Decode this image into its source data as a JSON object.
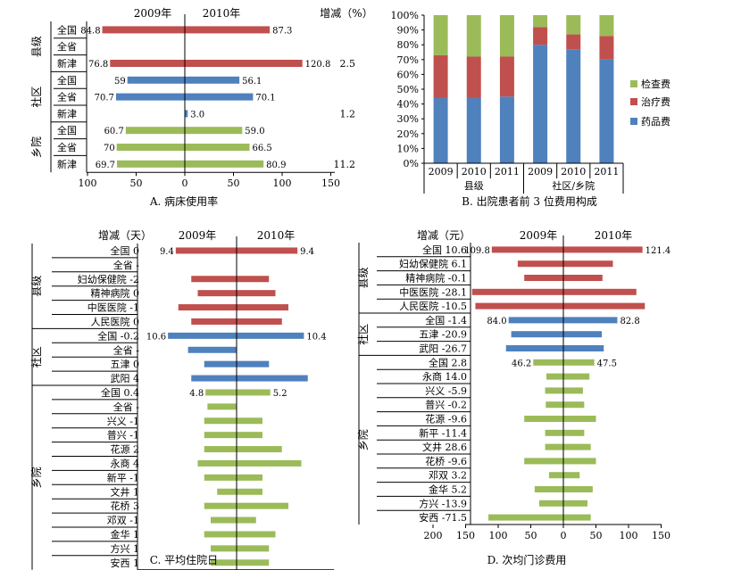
{
  "colors": {
    "red": "#C0504D",
    "blue": "#4F81BD",
    "green": "#9BBB59",
    "axis_red": "#E0201A"
  },
  "panel_a": {
    "caption": "A. 病床使用率",
    "chart_data": {
      "type": "bar",
      "orientation": "horizontal-butterfly",
      "header_left": "2009年",
      "header_right": "2010年",
      "header_change": "增减（%）",
      "xticks": [
        "100",
        "50",
        "0",
        "50",
        "100",
        "150"
      ],
      "xtick_values": [
        -100,
        -50,
        0,
        50,
        100,
        150
      ],
      "groups": [
        {
          "name": "县级",
          "color": "red",
          "rows": [
            {
              "label": "全国",
              "v2009": 84.8,
              "v2010": 87.3,
              "t2009": "84.8",
              "t2010": "87.3",
              "change": ""
            },
            {
              "label": "全省",
              "v2009": null,
              "v2010": null,
              "t2009": "",
              "t2010": "",
              "change": ""
            },
            {
              "label": "新津",
              "v2009": 76.8,
              "v2010": 120.8,
              "t2009": "76.8",
              "t2010": "120.8",
              "change": "2.5"
            }
          ]
        },
        {
          "name": "社区",
          "color": "blue",
          "rows": [
            {
              "label": "全国",
              "v2009": 59,
              "v2010": 56.1,
              "t2009": "59",
              "t2010": "56.1",
              "change": ""
            },
            {
              "label": "全省",
              "v2009": 70.7,
              "v2010": 70.1,
              "t2009": "70.7",
              "t2010": "70.1",
              "change": ""
            },
            {
              "label": "新津",
              "v2009": null,
              "v2010": 3.0,
              "t2009": "",
              "t2010": "3.0",
              "change": "1.2"
            }
          ]
        },
        {
          "name": "乡院",
          "color": "green",
          "rows": [
            {
              "label": "全国",
              "v2009": 60.7,
              "v2010": 59.0,
              "t2009": "60.7",
              "t2010": "59.0",
              "change": ""
            },
            {
              "label": "全省",
              "v2009": 70,
              "v2010": 66.5,
              "t2009": "70",
              "t2010": "66.5",
              "change": ""
            },
            {
              "label": "新津",
              "v2009": 69.7,
              "v2010": 80.9,
              "t2009": "69.7",
              "t2010": "80.9",
              "change": "11.2"
            }
          ]
        }
      ]
    }
  },
  "panel_b": {
    "caption": "B. 出院患者前 3 位费用构成",
    "chart_data": {
      "type": "bar",
      "stacked": "percent",
      "ylim": [
        0,
        100
      ],
      "yticks": [
        "0%",
        "10%",
        "20%",
        "30%",
        "40%",
        "50%",
        "60%",
        "70%",
        "80%",
        "90%",
        "100%"
      ],
      "categories": [
        "2009",
        "2010",
        "2011",
        "2009",
        "2010",
        "2011"
      ],
      "category_groups": [
        {
          "name": "县级",
          "span": 3
        },
        {
          "name": "社区/乡院",
          "span": 3
        }
      ],
      "legend_position": "right",
      "series": [
        {
          "name": "药品费",
          "color": "blue",
          "values": [
            44,
            44,
            45,
            80,
            77,
            70
          ]
        },
        {
          "name": "治疗费",
          "color": "red",
          "values": [
            29,
            28,
            27,
            12,
            10,
            16
          ]
        },
        {
          "name": "检查费",
          "color": "green",
          "values": [
            27,
            28,
            28,
            8,
            13,
            14
          ]
        }
      ]
    }
  },
  "panel_c": {
    "caption": "C. 平均住院日",
    "chart_data": {
      "type": "bar",
      "orientation": "horizontal-butterfly",
      "header_change": "增减（天）",
      "header_left": "2009年",
      "header_right": "2010年",
      "xticks": [
        "15",
        "10",
        "5",
        "0",
        "5",
        "10",
        "15"
      ],
      "xtick_values": [
        -15,
        -10,
        -5,
        0,
        5,
        10,
        15
      ],
      "groups": [
        {
          "name": "县级",
          "color": "red",
          "rows": [
            {
              "label": "全国",
              "change": "0",
              "v2009": 9.4,
              "v2010": 9.4,
              "t2009": "9.4",
              "t2010": "9.4"
            },
            {
              "label": "全省",
              "change": "-",
              "v2009": null,
              "v2010": null,
              "t2009": "",
              "t2010": ""
            },
            {
              "label": "妇幼保健院",
              "change": "-2",
              "v2009": 7.0,
              "v2010": 5.0,
              "t2009": "",
              "t2010": ""
            },
            {
              "label": "精神病院",
              "change": "0",
              "v2009": 6.0,
              "v2010": 6.0,
              "t2009": "",
              "t2010": ""
            },
            {
              "label": "中医医院",
              "change": "-1",
              "v2009": 9.0,
              "v2010": 8.0,
              "t2009": "",
              "t2010": ""
            },
            {
              "label": "人民医院",
              "change": "0",
              "v2009": 7.0,
              "v2010": 7.0,
              "t2009": "",
              "t2010": ""
            }
          ]
        },
        {
          "name": "社区",
          "color": "blue",
          "rows": [
            {
              "label": "全国",
              "change": "-0.2",
              "v2009": 10.6,
              "v2010": 10.4,
              "t2009": "10.6",
              "t2010": "10.4"
            },
            {
              "label": "全省",
              "change": "-",
              "v2009": 7.5,
              "v2010": null,
              "t2009": "",
              "t2010": ""
            },
            {
              "label": "五津",
              "change": "0",
              "v2009": 5.0,
              "v2010": 5.0,
              "t2009": "",
              "t2010": ""
            },
            {
              "label": "武阳",
              "change": "4",
              "v2009": 7.0,
              "v2010": 11.0,
              "t2009": "",
              "t2010": ""
            }
          ]
        },
        {
          "name": "乡院",
          "color": "green",
          "rows": [
            {
              "label": "全国",
              "change": "0.4",
              "v2009": 4.8,
              "v2010": 5.2,
              "t2009": "4.8",
              "t2010": "5.2"
            },
            {
              "label": "全省",
              "change": "-",
              "v2009": 4.5,
              "v2010": null,
              "t2009": "",
              "t2010": ""
            },
            {
              "label": "兴义",
              "change": "-1",
              "v2009": 5.0,
              "v2010": 4.0,
              "t2009": "",
              "t2010": ""
            },
            {
              "label": "普兴",
              "change": "-1",
              "v2009": 5.0,
              "v2010": 4.0,
              "t2009": "",
              "t2010": ""
            },
            {
              "label": "花源",
              "change": "2",
              "v2009": 5.0,
              "v2010": 7.0,
              "t2009": "",
              "t2010": ""
            },
            {
              "label": "永商",
              "change": "4",
              "v2009": 6.0,
              "v2010": 10.0,
              "t2009": "",
              "t2010": ""
            },
            {
              "label": "新平",
              "change": "-1",
              "v2009": 5.0,
              "v2010": 4.0,
              "t2009": "",
              "t2010": ""
            },
            {
              "label": "文井",
              "change": "1",
              "v2009": 3.0,
              "v2010": 4.0,
              "t2009": "",
              "t2010": ""
            },
            {
              "label": "花桥",
              "change": "3",
              "v2009": 5.0,
              "v2010": 8.0,
              "t2009": "",
              "t2010": ""
            },
            {
              "label": "邓双",
              "change": "-1",
              "v2009": 4.0,
              "v2010": 3.0,
              "t2009": "",
              "t2010": ""
            },
            {
              "label": "金华",
              "change": "1",
              "v2009": 5.0,
              "v2010": 6.0,
              "t2009": "",
              "t2010": ""
            },
            {
              "label": "方兴",
              "change": "1",
              "v2009": 4.0,
              "v2010": 5.0,
              "t2009": "",
              "t2010": ""
            },
            {
              "label": "安西",
              "change": "1",
              "v2009": 4.0,
              "v2010": 5.0,
              "t2009": "",
              "t2010": ""
            }
          ]
        }
      ]
    }
  },
  "panel_d": {
    "caption": "D. 次均门诊费用",
    "chart_data": {
      "type": "bar",
      "orientation": "horizontal-butterfly",
      "header_change": "增减（元）",
      "header_left": "2009年",
      "header_right": "2010年",
      "xticks": [
        "200",
        "150",
        "100",
        "50",
        "0",
        "50",
        "100",
        "150"
      ],
      "xtick_values": [
        -200,
        -150,
        -100,
        -50,
        0,
        50,
        100,
        150
      ],
      "groups": [
        {
          "name": "县级",
          "color": "red",
          "rows": [
            {
              "label": "全国",
              "change": "10.6",
              "v2009": 109.8,
              "v2010": 121.4,
              "t2009": "109.8",
              "t2010": "121.4"
            },
            {
              "label": "妇幼保健院",
              "change": "6.1",
              "v2009": 70,
              "v2010": 76,
              "t2009": "",
              "t2010": ""
            },
            {
              "label": "精神病院",
              "change": "-0.1",
              "v2009": 60,
              "v2010": 60,
              "t2009": "",
              "t2010": ""
            },
            {
              "label": "中医医院",
              "change": "-28.1",
              "v2009": 140,
              "v2010": 112,
              "t2009": "",
              "t2010": ""
            },
            {
              "label": "人民医院",
              "change": "-10.5",
              "v2009": 135,
              "v2010": 125,
              "t2009": "",
              "t2010": ""
            }
          ]
        },
        {
          "name": "社区",
          "color": "blue",
          "rows": [
            {
              "label": "全国",
              "change": "-1.4",
              "v2009": 84.0,
              "v2010": 82.8,
              "t2009": "84.0",
              "t2010": "82.8"
            },
            {
              "label": "五津",
              "change": "-20.9",
              "v2009": 80,
              "v2010": 59,
              "t2009": "",
              "t2010": ""
            },
            {
              "label": "武阳",
              "change": "-26.7",
              "v2009": 88,
              "v2010": 62,
              "t2009": "",
              "t2010": ""
            }
          ]
        },
        {
          "name": "乡院",
          "color": "green",
          "rows": [
            {
              "label": "全国",
              "change": "2.8",
              "v2009": 46.2,
              "v2010": 47.5,
              "t2009": "46.2",
              "t2010": "47.5"
            },
            {
              "label": "永商",
              "change": "14.0",
              "v2009": 26,
              "v2010": 40,
              "t2009": "",
              "t2010": ""
            },
            {
              "label": "兴义",
              "change": "-5.9",
              "v2009": 28,
              "v2010": 30,
              "t2009": "",
              "t2010": ""
            },
            {
              "label": "普兴",
              "change": "-0.2",
              "v2009": 27,
              "v2010": 32,
              "t2009": "",
              "t2010": ""
            },
            {
              "label": "花源",
              "change": "-9.6",
              "v2009": 60,
              "v2010": 50,
              "t2009": "",
              "t2010": ""
            },
            {
              "label": "新平",
              "change": "-11.4",
              "v2009": 28,
              "v2010": 32,
              "t2009": "",
              "t2010": ""
            },
            {
              "label": "文井",
              "change": "28.6",
              "v2009": 28,
              "v2010": 42,
              "t2009": "",
              "t2010": ""
            },
            {
              "label": "花桥",
              "change": "-9.6",
              "v2009": 60,
              "v2010": 50,
              "t2009": "",
              "t2010": ""
            },
            {
              "label": "邓双",
              "change": "3.2",
              "v2009": 22,
              "v2010": 25,
              "t2009": "",
              "t2010": ""
            },
            {
              "label": "金华",
              "change": "5.2",
              "v2009": 44,
              "v2010": 45,
              "t2009": "",
              "t2010": ""
            },
            {
              "label": "方兴",
              "change": "-13.9",
              "v2009": 37,
              "v2010": 37,
              "t2009": "",
              "t2010": ""
            },
            {
              "label": "安西",
              "change": "-71.5",
              "v2009": 115,
              "v2010": 42,
              "t2009": "",
              "t2010": ""
            }
          ]
        }
      ]
    }
  }
}
